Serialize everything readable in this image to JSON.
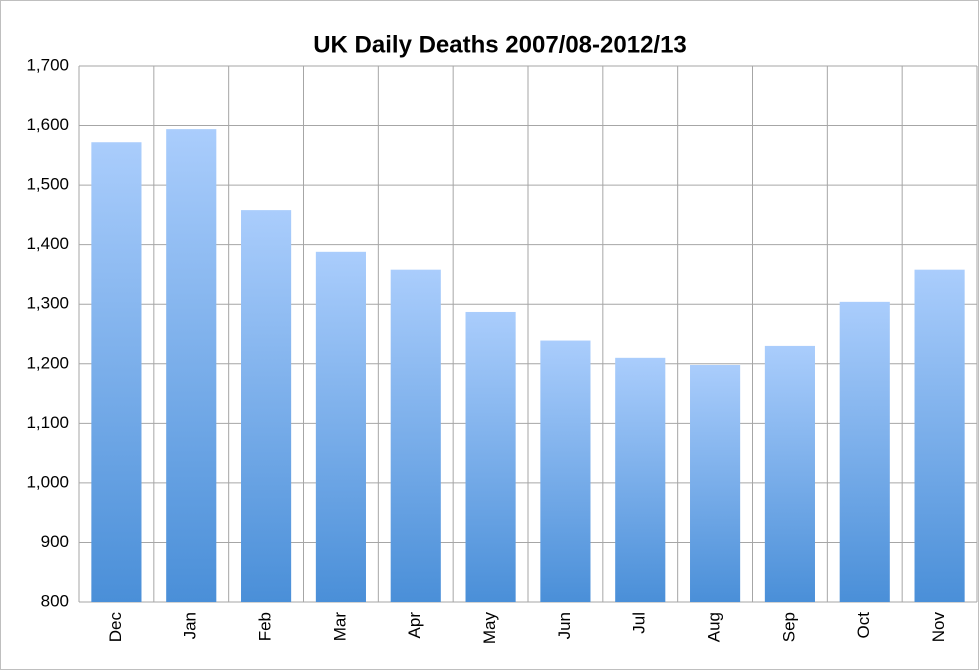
{
  "chart_data": {
    "type": "bar",
    "title": "UK Daily Deaths 2007/08-2012/13",
    "categories": [
      "Dec",
      "Jan",
      "Feb",
      "Mar",
      "Apr",
      "May",
      "Jun",
      "Jul",
      "Aug",
      "Sep",
      "Oct",
      "Nov"
    ],
    "values": [
      1572,
      1594,
      1458,
      1388,
      1358,
      1287,
      1239,
      1210,
      1198,
      1230,
      1304,
      1358
    ],
    "color": "#5b9be0",
    "ylim": [
      800,
      1700
    ],
    "yticks": [
      800,
      900,
      {
        "value": 1000,
        "label": "1,000"
      },
      {
        "value": 1100,
        "label": "1,100"
      },
      {
        "value": 1200,
        "label": "1,200"
      },
      {
        "value": 1300,
        "label": "1,300"
      },
      {
        "value": 1400,
        "label": "1,400"
      },
      {
        "value": 1500,
        "label": "1,500"
      },
      {
        "value": 1600,
        "label": "1,600"
      },
      {
        "value": 1700,
        "label": "1,700"
      }
    ],
    "grid": true
  }
}
